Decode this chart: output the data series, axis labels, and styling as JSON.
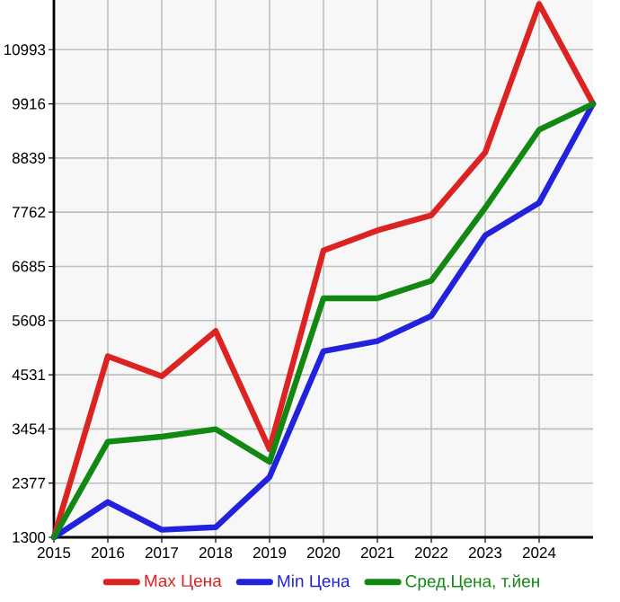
{
  "chart_data": {
    "type": "line",
    "x": [
      2015,
      2016,
      2017,
      2018,
      2019,
      2020,
      2021,
      2022,
      2023,
      2024,
      2025
    ],
    "series": [
      {
        "name": "Max Цена",
        "color": "#dd2222",
        "values": [
          1300,
          4900,
          4500,
          5400,
          3050,
          7000,
          7400,
          7700,
          8950,
          11900,
          9916
        ]
      },
      {
        "name": "Min Цена",
        "color": "#2222dd",
        "values": [
          1300,
          2000,
          1450,
          1500,
          2500,
          5000,
          5200,
          5700,
          7300,
          7950,
          9916
        ]
      },
      {
        "name": "Сред.Цена, т.йен",
        "color": "#118811",
        "values": [
          1300,
          3200,
          3300,
          3450,
          2800,
          6050,
          6050,
          6400,
          7850,
          9400,
          9916
        ]
      }
    ],
    "xlim": [
      2015,
      2025
    ],
    "ylim": [
      1300,
      11980
    ],
    "xticks": [
      2015,
      2016,
      2017,
      2018,
      2019,
      2020,
      2021,
      2022,
      2023,
      2024
    ],
    "yticks": [
      1300,
      2377,
      3454,
      4531,
      5608,
      6685,
      7762,
      8839,
      9916,
      10993
    ],
    "grid": true,
    "legend": "bottom",
    "marker": "none",
    "line_style": "solid"
  }
}
